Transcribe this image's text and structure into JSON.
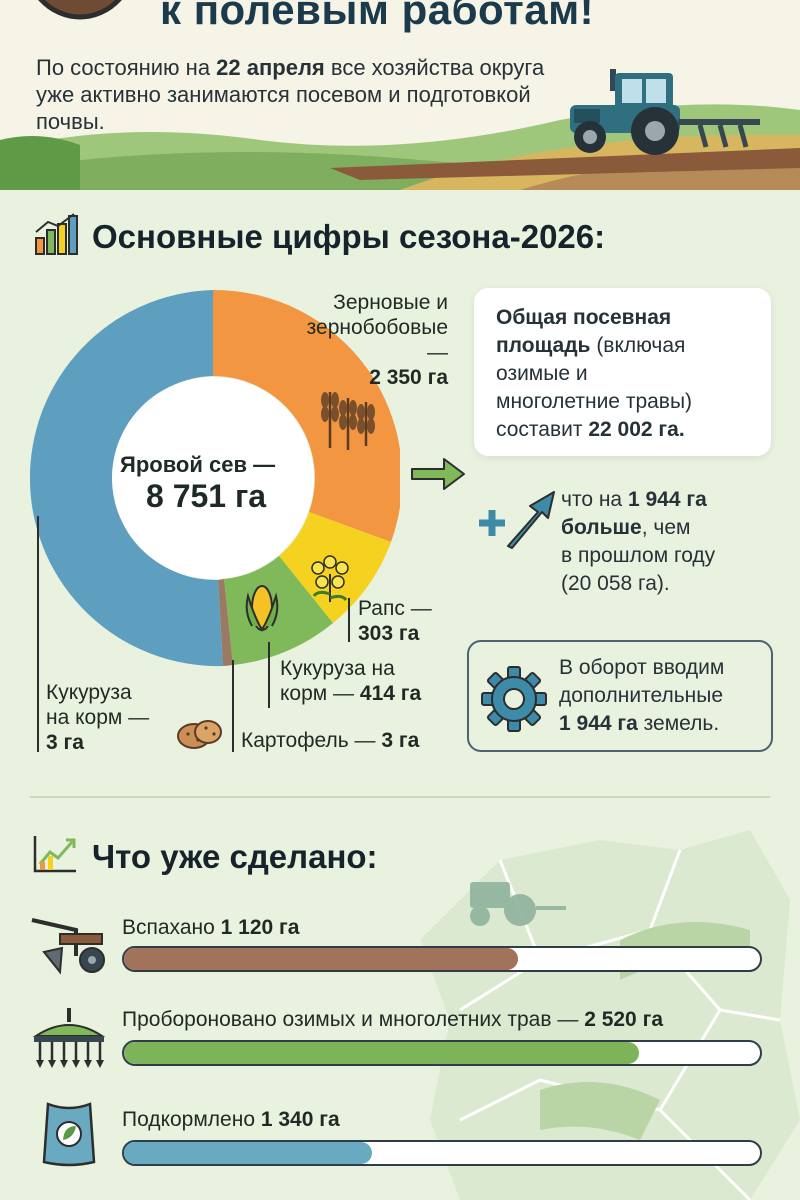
{
  "header": {
    "title": "к полевым работам!",
    "intro_part1": "По состоянию на ",
    "intro_date": "22 апреля",
    "intro_part2": " все хозяйства округа уже активно занимаются посевом и подготовкой почвы."
  },
  "season": {
    "title": "Основные цифры сезона-2026:",
    "center_label": "Яровой сев —",
    "center_value": "8 751 га",
    "segments": {
      "grain_name_1": "Зерновые и",
      "grain_name_2": "зернобобовые —",
      "grain_value": "2 350 га",
      "rapeseed_name": "Рапс —",
      "rapeseed_value": "303 га",
      "corn_name_1": "Кукуруза на",
      "corn_name_2": "корм — ",
      "corn_value": "414 га",
      "potato_name": "Картофель — ",
      "potato_value": "3 га",
      "corn_small_name_1": "Кукуруза",
      "corn_small_name_2": "на корм —",
      "corn_small_value": "3 га"
    },
    "total_card": {
      "bold_1": "Общая посевная",
      "bold_2": "площадь",
      "text_1": " (включая",
      "text_2": "озимые и",
      "text_3": "многолетние травы)",
      "text_4": "составит ",
      "value": "22 002 га."
    },
    "growth": {
      "text_1": "что на ",
      "value": "1 944 га",
      "bold_more": "больше",
      "text_2": ", чем",
      "text_3": "в прошлом году",
      "text_4": "(20 058 га)."
    },
    "land_card": {
      "text_1": "В оборот вводим",
      "text_2": "дополнительные",
      "value": "1 944 га",
      "text_3": " земель."
    }
  },
  "progress": {
    "title": "Что уже сделано:",
    "items": [
      {
        "label": "Вспахано ",
        "value": "1 120 га",
        "fraction": 0.62,
        "color": "#a0735a"
      },
      {
        "label": "Проборонованo озимых и многолетних трав — ",
        "value": "2 520 га",
        "fraction": 0.81,
        "color": "#7db45a"
      },
      {
        "label": "Подкормлено ",
        "value": "1 340 га",
        "fraction": 0.39,
        "color": "#6aaac0"
      }
    ]
  },
  "colors": {
    "blue": "#5e9fc0",
    "orange": "#f29642",
    "yellow": "#f4d21f",
    "green": "#7fb95a",
    "brown": "#9a7a63",
    "arrow": "#3d8ba8"
  }
}
